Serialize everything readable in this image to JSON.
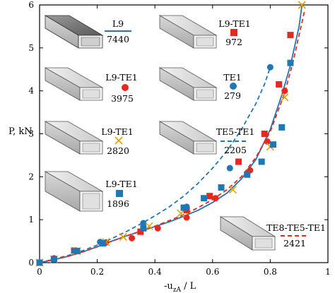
{
  "chart_data": {
    "type": "scatter",
    "xlabel": "-u",
    "xlabel_sub": "zA",
    "xlabel_tail": " / L",
    "ylabel": "P, kN",
    "xlim": [
      0,
      1
    ],
    "ylim": [
      0,
      6
    ],
    "xticks": [
      "0",
      "0.2",
      "0.4",
      "0.6",
      "0.8",
      "1"
    ],
    "xtick_values": [
      0,
      0.2,
      0.4,
      0.6,
      0.8,
      1
    ],
    "yticks": [
      "0",
      "1",
      "2",
      "3",
      "4",
      "5",
      "6"
    ],
    "ytick_values": [
      0,
      1,
      2,
      3,
      4,
      5,
      6
    ],
    "colors": {
      "blue": "#1f77b4",
      "red": "#e8281e",
      "orange": "#e69f00"
    },
    "series": [
      {
        "name": "L9",
        "dof": "7440",
        "kind": "line",
        "dash": "solid",
        "color": "#1f77b4",
        "x": [
          0,
          0.05,
          0.1,
          0.15,
          0.2,
          0.25,
          0.3,
          0.35,
          0.4,
          0.45,
          0.5,
          0.55,
          0.6,
          0.65,
          0.7,
          0.75,
          0.8,
          0.84,
          0.87,
          0.9,
          0.91
        ],
        "y": [
          0,
          0.07,
          0.15,
          0.25,
          0.37,
          0.5,
          0.62,
          0.73,
          0.84,
          0.95,
          1.08,
          1.22,
          1.4,
          1.62,
          1.95,
          2.4,
          3.1,
          3.9,
          4.6,
          5.5,
          6.0
        ]
      },
      {
        "name": "TE5-TE1",
        "dof": "2205",
        "kind": "line",
        "dash": "dashed",
        "color": "#1f77b4",
        "x": [
          0,
          0.05,
          0.1,
          0.15,
          0.2,
          0.25,
          0.3,
          0.35,
          0.4,
          0.45,
          0.5,
          0.55,
          0.6,
          0.65,
          0.7,
          0.75,
          0.78,
          0.8
        ],
        "y": [
          0,
          0.08,
          0.17,
          0.28,
          0.41,
          0.56,
          0.72,
          0.9,
          1.09,
          1.3,
          1.55,
          1.85,
          2.2,
          2.6,
          3.1,
          3.7,
          4.15,
          4.55
        ]
      },
      {
        "name": "TE8-TE5-TE1",
        "dof": "2421",
        "kind": "line",
        "dash": "dashed",
        "color": "#e8281e",
        "x": [
          0,
          0.05,
          0.1,
          0.15,
          0.2,
          0.25,
          0.3,
          0.35,
          0.4,
          0.45,
          0.5,
          0.55,
          0.6,
          0.65,
          0.7,
          0.75,
          0.8,
          0.85,
          0.88,
          0.9,
          0.92
        ],
        "y": [
          0,
          0.07,
          0.15,
          0.25,
          0.37,
          0.5,
          0.62,
          0.73,
          0.85,
          0.98,
          1.12,
          1.28,
          1.47,
          1.7,
          2.0,
          2.45,
          3.05,
          3.95,
          4.7,
          5.3,
          5.9
        ]
      },
      {
        "name": "L9-TE1",
        "dof": "972",
        "kind": "marker",
        "marker": "square",
        "color": "#e8281e",
        "x": [
          0,
          0.05,
          0.12,
          0.22,
          0.35,
          0.51,
          0.59,
          0.69,
          0.78,
          0.83,
          0.87
        ],
        "y": [
          0,
          0.08,
          0.28,
          0.45,
          0.72,
          1.22,
          1.55,
          2.35,
          3.0,
          4.15,
          5.3
        ]
      },
      {
        "name": "L9-TE1",
        "dof": "3975",
        "kind": "marker",
        "marker": "circle",
        "color": "#e8281e",
        "x": [
          0,
          0.05,
          0.13,
          0.23,
          0.32,
          0.41,
          0.51,
          0.61,
          0.73,
          0.79,
          0.85
        ],
        "y": [
          0,
          0.1,
          0.27,
          0.47,
          0.57,
          0.8,
          1.05,
          1.5,
          2.15,
          2.82,
          4.0
        ]
      },
      {
        "name": "TE1",
        "dof": "279",
        "kind": "marker",
        "marker": "circle",
        "color": "#1f77b4",
        "x": [
          0,
          0.05,
          0.12,
          0.21,
          0.36,
          0.51,
          0.66,
          0.8
        ],
        "y": [
          0,
          0.08,
          0.28,
          0.48,
          0.92,
          1.3,
          2.2,
          4.55
        ]
      },
      {
        "name": "L9-TE1",
        "dof": "2820",
        "kind": "marker",
        "marker": "cross",
        "color": "#e69f00",
        "x": [
          0,
          0.05,
          0.13,
          0.23,
          0.29,
          0.38,
          0.49,
          0.67,
          0.8,
          0.85,
          0.91
        ],
        "y": [
          0,
          0.08,
          0.27,
          0.48,
          0.6,
          0.85,
          1.15,
          1.7,
          2.7,
          3.85,
          6.0
        ]
      },
      {
        "name": "L9-TE1",
        "dof": "1896",
        "kind": "marker",
        "marker": "square",
        "color": "#1f77b4",
        "x": [
          0,
          0.05,
          0.13,
          0.22,
          0.36,
          0.5,
          0.57,
          0.63,
          0.72,
          0.77,
          0.81,
          0.84,
          0.87
        ],
        "y": [
          0,
          0.08,
          0.27,
          0.45,
          0.8,
          1.28,
          1.5,
          1.75,
          2.05,
          2.35,
          2.75,
          3.15,
          4.65
        ]
      }
    ]
  }
}
